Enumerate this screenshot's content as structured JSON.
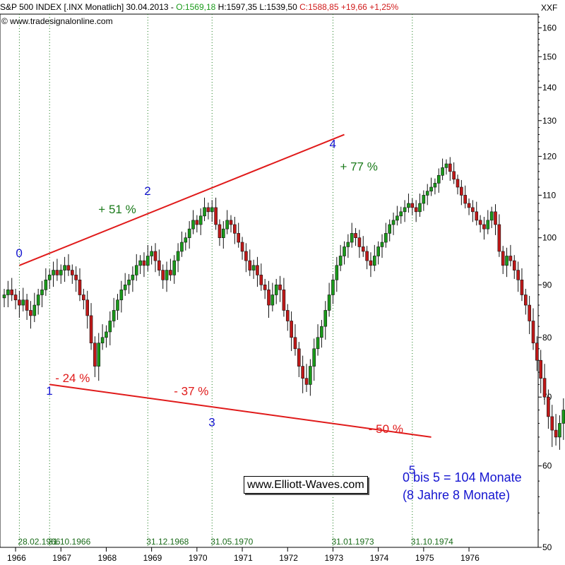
{
  "header": {
    "title_prefix": "S&P 500 INDEX [.INX Monatlich] 30.04.2013 -",
    "open": "O:1569,18",
    "high_low": "H:1597,35 L:1539,50",
    "close_change": "C:1588,85 +19,66 +1,25%",
    "source": "© www.tradesignalonline.com",
    "ticker_corner": "XXF"
  },
  "colors": {
    "candle_up": "#1a9a1a",
    "candle_down": "#c01818",
    "trendline": "#e01a1a",
    "wave_label": "#1515d0",
    "gain_label": "#1a7a1a",
    "loss_label": "#e01a1a",
    "date_label": "#1a6b1a"
  },
  "chart_data": {
    "type": "candlestick",
    "y_axis_ticks": [
      160,
      150,
      140,
      130,
      120,
      110,
      100,
      90,
      80,
      70,
      60,
      50
    ],
    "ylim": [
      50,
      165
    ],
    "x_axis_ticks": [
      "1966",
      "1967",
      "1968",
      "1969",
      "1970",
      "1971",
      "1972",
      "1973",
      "1974",
      "1975",
      "1976"
    ],
    "grid_date_labels": [
      "28.02.1966",
      "31.10.1966",
      "31.12.1968",
      "31.05.1970",
      "31.01.1973",
      "31.10.1974"
    ],
    "wave_labels": [
      {
        "label": "0",
        "date": "1966-02",
        "value": 94
      },
      {
        "label": "1",
        "date": "1966-10",
        "value": 74
      },
      {
        "label": "2",
        "date": "1968-12",
        "value": 108
      },
      {
        "label": "3",
        "date": "1970-05",
        "value": 69
      },
      {
        "label": "4",
        "date": "1973-01",
        "value": 120
      },
      {
        "label": "5",
        "date": "1974-10",
        "value": 62
      }
    ],
    "percent_moves": [
      {
        "text": "- 24 %",
        "type": "loss"
      },
      {
        "text": "+ 51 %",
        "type": "gain"
      },
      {
        "text": "- 37 %",
        "type": "loss"
      },
      {
        "text": "+ 77 %",
        "type": "gain"
      },
      {
        "text": "- 50 %",
        "type": "loss"
      }
    ],
    "closes": [
      88,
      89,
      88,
      87,
      86,
      87,
      85,
      84,
      86,
      88,
      89,
      91,
      92,
      93,
      92,
      93,
      94,
      93,
      92,
      91,
      88,
      87,
      84,
      79,
      75,
      79,
      80,
      81,
      83,
      85,
      87,
      89,
      90,
      91,
      92,
      94,
      95,
      94,
      96,
      97,
      95,
      93,
      91,
      93,
      92,
      95,
      97,
      99,
      100,
      102,
      104,
      103,
      105,
      107,
      106,
      107,
      103,
      100,
      102,
      104,
      103,
      101,
      99,
      97,
      95,
      93,
      94,
      92,
      90,
      89,
      86,
      88,
      90,
      89,
      85,
      83,
      80,
      78,
      75,
      73,
      72,
      75,
      78,
      80,
      82,
      85,
      88,
      91,
      94,
      96,
      98,
      99,
      101,
      100,
      98,
      97,
      95,
      94,
      96,
      98,
      99,
      101,
      103,
      104,
      105,
      106,
      107,
      108,
      107,
      106,
      108,
      110,
      111,
      112,
      113,
      115,
      117,
      118,
      116,
      114,
      112,
      110,
      108,
      107,
      106,
      104,
      103,
      102,
      104,
      106,
      103,
      97,
      94,
      96,
      95,
      93,
      91,
      88,
      86,
      83,
      79,
      76,
      73,
      70,
      67,
      65,
      64,
      66,
      68,
      72,
      76,
      79,
      82,
      85,
      88,
      91,
      94,
      97,
      99,
      96,
      94,
      91,
      89,
      87,
      86,
      89,
      91,
      90,
      93,
      96,
      98,
      99,
      100,
      101,
      102,
      100,
      101,
      103,
      104,
      102,
      103,
      104,
      101
    ],
    "trendlines": [
      {
        "name": "upper",
        "from": {
          "date": "1966-02",
          "value": 94
        },
        "to": {
          "date": "1973-04",
          "value": 126
        }
      },
      {
        "name": "lower",
        "from": {
          "date": "1966-10",
          "value": 72
        },
        "to": {
          "date": "1975-03",
          "value": 64
        }
      }
    ]
  },
  "annotations": {
    "summary_line1": "0 bis 5 = 104 Monate",
    "summary_line2": "(8 Jahre 8 Monate)",
    "watermark": "www.Elliott-Waves.com"
  }
}
